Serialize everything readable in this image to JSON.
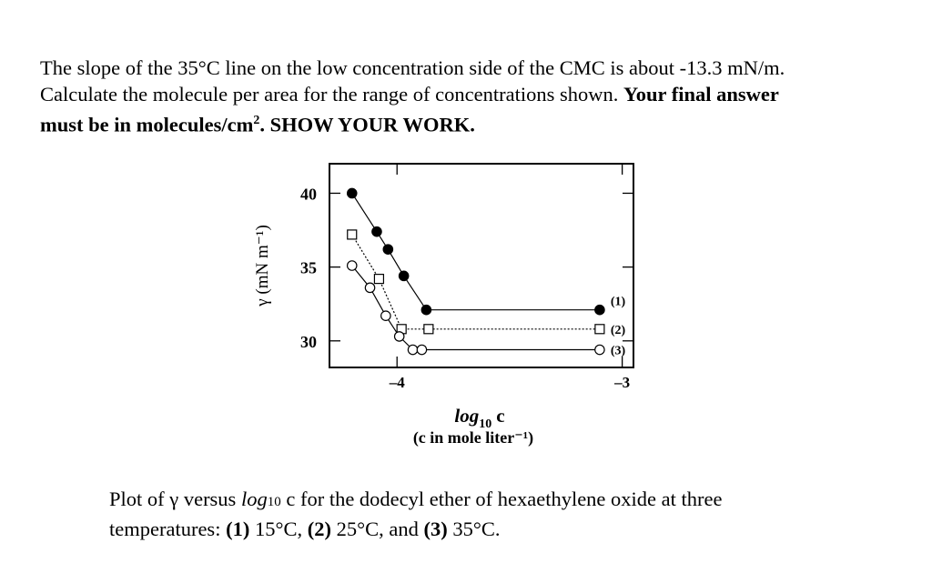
{
  "question": {
    "line1": "The slope of the 35°C line on the low concentration side of the CMC is about -13.3 mN/m.",
    "line2_plain": "Calculate the molecule per area for the range of concentrations shown. ",
    "line2_bold": "Your final answer",
    "line3_bold": "must be in molecules/cm",
    "line3_sup": "2",
    "line3_bold_end": ". SHOW YOUR WORK."
  },
  "caption": {
    "part1": "Plot of γ versus ",
    "log_word": "log",
    "log_sub": "10",
    "part2": " c for the dodecyl ether of hexaethylene oxide at three",
    "part3": "temperatures: ",
    "s1_num": "(1)",
    "s1_temp": " 15°C, ",
    "s2_num": "(2)",
    "s2_temp": " 25°C, and ",
    "s3_num": "(3)",
    "s3_temp": " 35°C."
  },
  "chart_data": {
    "type": "line",
    "title": "",
    "ylabel": "γ (mN m⁻¹)",
    "xlabel_main": "log",
    "xlabel_sub": "10",
    "xlabel_var": "c",
    "xlabel_note": "(c in mole liter⁻¹)",
    "xlim": [
      -4.3,
      -2.95
    ],
    "ylim": [
      28.2,
      42
    ],
    "x_ticks": [
      {
        "value": -4,
        "label": "–4"
      },
      {
        "value": -3,
        "label": "–3"
      }
    ],
    "y_ticks": [
      {
        "value": 40,
        "label": "40"
      },
      {
        "value": 35,
        "label": "35"
      },
      {
        "value": 30,
        "label": "30"
      }
    ],
    "series": [
      {
        "name": "(1)",
        "marker": "filled-circle",
        "line": "solid",
        "x": [
          -4.2,
          -4.09,
          -4.04,
          -3.97,
          -3.87,
          -3.1
        ],
        "y": [
          40,
          37.4,
          36.2,
          34.4,
          32.1,
          32.1
        ]
      },
      {
        "name": "(2)",
        "marker": "open-square",
        "line": "dotted",
        "x": [
          -4.2,
          -4.08,
          -3.98,
          -3.86,
          -3.1
        ],
        "y": [
          37.2,
          34.2,
          30.8,
          30.8,
          30.8
        ]
      },
      {
        "name": "(3)",
        "marker": "open-circle",
        "line": "solid",
        "x": [
          -4.2,
          -4.12,
          -4.05,
          -3.99,
          -3.93,
          -3.89,
          -3.1
        ],
        "y": [
          35.1,
          33.6,
          31.7,
          30.3,
          29.4,
          29.4,
          29.4
        ]
      }
    ]
  }
}
